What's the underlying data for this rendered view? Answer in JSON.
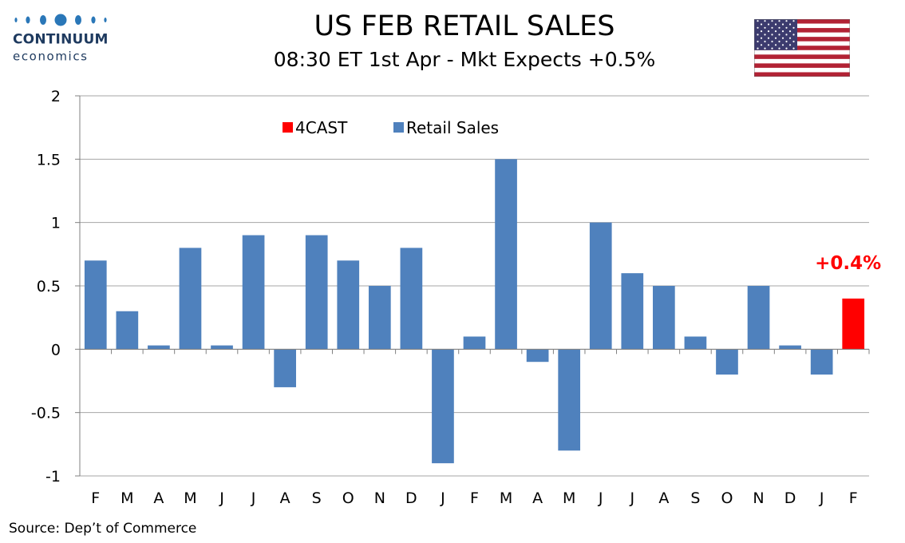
{
  "brand": {
    "name": "CONTINUUM",
    "sub": "economics",
    "dot_color": "#2a77b8",
    "text_color": "#1e3a5f"
  },
  "header": {
    "title": "US FEB RETAIL SALES",
    "subtitle": "08:30 ET 1st Apr - Mkt Expects +0.5%"
  },
  "flag_icon": "us-flag-icon",
  "footer": {
    "source": "Source: Dep’t of Commerce"
  },
  "chart_data": {
    "type": "bar",
    "title": "US FEB RETAIL SALES",
    "subtitle": "08:30 ET 1st Apr - Mkt Expects +0.5%",
    "xlabel": "",
    "ylabel": "",
    "ylim": [
      -1,
      2
    ],
    "yticks": [
      -1,
      -0.5,
      0,
      0.5,
      1,
      1.5,
      2
    ],
    "ytick_labels": [
      "-1",
      "-0.5",
      "0",
      "0.5",
      "1",
      "1.5",
      "2"
    ],
    "grid": true,
    "legend_position": "top-left",
    "categories": [
      "F",
      "M",
      "A",
      "M",
      "J",
      "J",
      "A",
      "S",
      "O",
      "N",
      "D",
      "J",
      "F",
      "M",
      "A",
      "M",
      "J",
      "J",
      "A",
      "S",
      "O",
      "N",
      "D",
      "J",
      "F"
    ],
    "series": [
      {
        "name": "4CAST",
        "color": "#ff0000",
        "values": [
          null,
          null,
          null,
          null,
          null,
          null,
          null,
          null,
          null,
          null,
          null,
          null,
          null,
          null,
          null,
          null,
          null,
          null,
          null,
          null,
          null,
          null,
          null,
          null,
          0.4
        ]
      },
      {
        "name": "Retail Sales",
        "color": "#4f81bd",
        "values": [
          0.7,
          0.3,
          0.03,
          0.8,
          0.03,
          0.9,
          -0.3,
          0.9,
          0.7,
          0.5,
          0.8,
          -0.9,
          0.1,
          1.5,
          -0.1,
          -0.8,
          1.0,
          0.6,
          0.5,
          0.1,
          -0.2,
          0.5,
          0.03,
          -0.2,
          null
        ]
      }
    ],
    "annotations": [
      {
        "text": "+0.4%",
        "category_index": 24,
        "series": "4CAST",
        "color": "#ff0000"
      }
    ]
  }
}
